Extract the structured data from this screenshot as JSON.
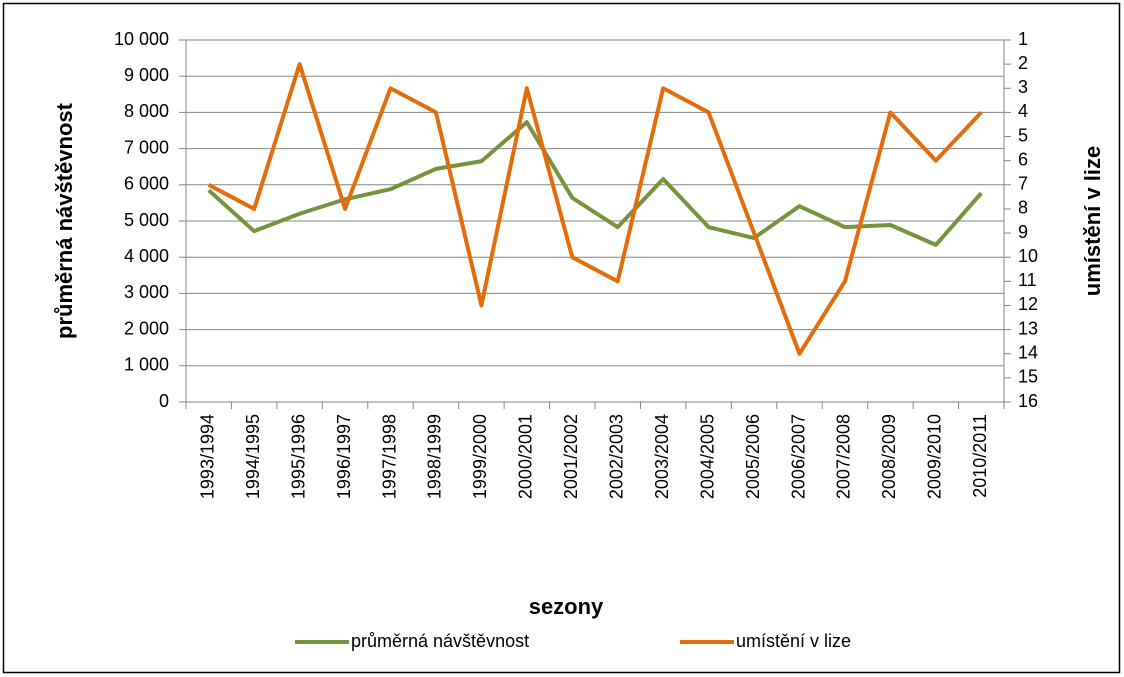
{
  "chart_data": {
    "type": "line",
    "x_label": "sezony",
    "y_label": "průměrná návštěvnost",
    "y2_label": "umístění v lize",
    "categories": [
      "1993/1994",
      "1994/1995",
      "1995/1996",
      "1996/1997",
      "1997/1998",
      "1998/1999",
      "1999/2000",
      "2000/2001",
      "2001/2002",
      "2002/2003",
      "2003/2004",
      "2004/2005",
      "2005/2006",
      "2006/2007",
      "2007/2008",
      "2008/2009",
      "2009/2010",
      "2010/2011"
    ],
    "series": [
      {
        "name": "průměrná návštěvnost",
        "color": "#77933c",
        "values": [
          5850,
          4720,
          5200,
          5600,
          5880,
          6440,
          6650,
          7730,
          5640,
          4830,
          6160,
          4830,
          4530,
          5410,
          4830,
          4890,
          4340,
          5770
        ]
      },
      {
        "name": "umístění v lize",
        "color": "#e46c0a",
        "axis": "y2",
        "values": [
          7,
          8,
          2,
          8,
          3,
          4,
          12,
          3,
          10,
          11,
          3,
          4,
          9,
          14,
          11,
          4,
          6,
          4
        ]
      }
    ],
    "ylim": [
      0,
      10000
    ],
    "yticks": [
      0,
      {
        "value": 1000,
        "label": "1 000"
      },
      {
        "value": 2000,
        "label": "2 000"
      },
      {
        "value": 3000,
        "label": "3 000"
      },
      {
        "value": 4000,
        "label": "4 000"
      },
      {
        "value": 5000,
        "label": "5 000"
      },
      {
        "value": 6000,
        "label": "6 000"
      },
      {
        "value": 7000,
        "label": "7 000"
      },
      {
        "value": 8000,
        "label": "8 000"
      },
      {
        "value": 9000,
        "label": "9 000"
      },
      {
        "value": 10000,
        "label": "10 000"
      }
    ],
    "y2lim": [
      16,
      1
    ],
    "y2ticks": [
      1,
      2,
      3,
      4,
      5,
      6,
      7,
      8,
      9,
      10,
      11,
      12,
      13,
      14,
      15,
      16
    ],
    "grid": true,
    "legend": "bottom"
  }
}
